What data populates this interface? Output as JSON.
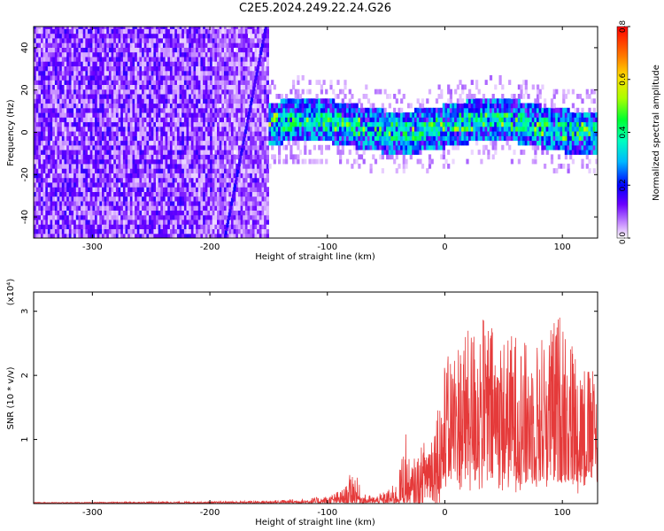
{
  "title": "C2E5.2024.249.22.24.G26",
  "spectrogram": {
    "ylabel": "Frequency (Hz)",
    "xlabel": "Height of straight line (km)",
    "xticks": [
      "-300",
      "-200",
      "-100",
      "0",
      "100"
    ],
    "yticks": [
      "40",
      "20",
      "0",
      "-20",
      "-40"
    ],
    "colorbar_label": "Normalized spectral amplitude",
    "colorbar_ticks": [
      "0.8",
      "0.6",
      "0.4",
      "0.2",
      "0.0"
    ]
  },
  "chart_data": [
    {
      "type": "heatmap",
      "title": "C2E5.2024.249.22.24.G26",
      "xlabel": "Height of straight line (km)",
      "ylabel": "Frequency (Hz)",
      "xlim": [
        -350,
        130
      ],
      "ylim": [
        -50,
        50
      ],
      "color_scale": {
        "label": "Normalized spectral amplitude",
        "range": [
          0.0,
          0.8
        ]
      },
      "features": [
        {
          "name": "",
          "x_range": [
            -350,
            -150
          ],
          "y_range": [
            -50,
            50
          ],
          "typical_amplitude": 0.1
        },
        {
          "name": "",
          "x_range": [
            -140,
            130
          ],
          "y_center": 2,
          "y_halfwidth": 10,
          "typical_amplitude": 0.35,
          "peak_amplitude": 0.6
        }
      ]
    },
    {
      "type": "line",
      "xlabel": "Height of straight line (km)",
      "ylabel": "SNR (10 * v/v)",
      "y_multiplier": "(x10⁴)",
      "xlim": [
        -350,
        130
      ],
      "ylim": [
        0,
        3.3
      ],
      "xticks": [
        "-300",
        "-200",
        "-100",
        "0",
        "100"
      ],
      "yticks": [
        "3",
        "2",
        "1"
      ],
      "color": "#e53a3a",
      "series": [
        {
          "x": [
            -350,
            -300,
            -250,
            -200,
            -150,
            -120,
            -100,
            -85,
            -78,
            -70,
            -60,
            -50,
            -40,
            -33,
            -30,
            -20,
            -10,
            0,
            10,
            20,
            30,
            40,
            50,
            60,
            70,
            80,
            90,
            100,
            110,
            120,
            130
          ],
          "y": [
            0.02,
            0.02,
            0.03,
            0.03,
            0.05,
            0.08,
            0.12,
            0.25,
            0.6,
            0.15,
            0.12,
            0.2,
            0.35,
            1.25,
            0.6,
            0.9,
            1.3,
            2.2,
            2.6,
            2.7,
            3.0,
            2.8,
            2.6,
            2.7,
            2.5,
            2.6,
            2.8,
            3.1,
            2.5,
            2.2,
            2.0
          ]
        }
      ]
    }
  ],
  "snr": {
    "ylabel": "SNR (10 * v/v)",
    "multiplier": "(x10⁴)",
    "xlabel": "Height of straight line (km)",
    "xticks": [
      "-300",
      "-200",
      "-100",
      "0",
      "100"
    ],
    "yticks": [
      "3",
      "2",
      "1"
    ]
  }
}
